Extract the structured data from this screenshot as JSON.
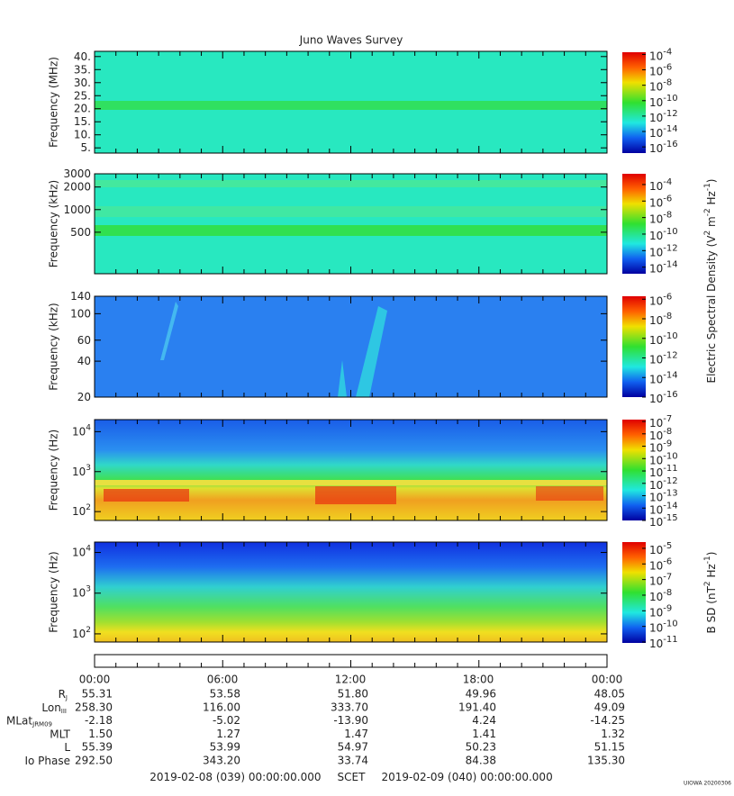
{
  "title": "Juno Waves Survey",
  "tick_base": "10",
  "panels": [
    {
      "ylabel": "Frequency (MHz)",
      "log": false,
      "ylim": [
        3,
        42
      ],
      "yticks": [
        {
          "value": 40,
          "label": "40."
        },
        {
          "value": 35,
          "label": "35."
        },
        {
          "value": 30,
          "label": "30."
        },
        {
          "value": 25,
          "label": "25."
        },
        {
          "value": 20,
          "label": "20."
        },
        {
          "value": 15,
          "label": "15."
        },
        {
          "value": 10,
          "label": "10."
        },
        {
          "value": 5,
          "label": "5."
        }
      ],
      "cbar_lim": [
        -16.8,
        -3.6
      ],
      "cbar_ticks": [
        -4,
        -6,
        -8,
        -10,
        -12,
        -14,
        -16
      ]
    },
    {
      "ylabel": "Frequency (kHz)",
      "log": true,
      "ylim": [
        140,
        3000
      ],
      "yticks": [
        3000,
        2000,
        1000,
        500
      ],
      "cbar_lim": [
        -14.8,
        -2.7
      ],
      "cbar_ticks": [
        -4,
        -6,
        -8,
        -10,
        -12,
        -14
      ]
    },
    {
      "ylabel": "Frequency (kHz)",
      "log": true,
      "ylim": [
        20,
        140
      ],
      "yticks": [
        140,
        100,
        60,
        40,
        20
      ],
      "cbar_lim": [
        -16,
        -5.7
      ],
      "cbar_ticks": [
        -6,
        -8,
        -10,
        -12,
        -14,
        -16
      ]
    },
    {
      "ylabel": "Frequency (Hz)",
      "log": true,
      "ylim": [
        60,
        20000
      ],
      "yticks": [
        {
          "value": 10000,
          "label": "10",
          "sup": "4"
        },
        {
          "value": 1000,
          "label": "10",
          "sup": "3"
        },
        {
          "value": 100,
          "label": "10",
          "sup": "2"
        }
      ],
      "cbar_lim": [
        -15,
        -6.85
      ],
      "cbar_ticks": [
        -7,
        -8,
        -9,
        -10,
        -11,
        -12,
        -13,
        -14,
        -15
      ]
    },
    {
      "ylabel": "Frequency (Hz)",
      "log": true,
      "ylim": [
        63,
        18000
      ],
      "yticks": [
        {
          "value": 10000,
          "label": "10",
          "sup": "4"
        },
        {
          "value": 1000,
          "label": "10",
          "sup": "3"
        },
        {
          "value": 100,
          "label": "10",
          "sup": "2"
        }
      ],
      "cbar_lim": [
        -11,
        -4.6
      ],
      "cbar_ticks": [
        -5,
        -6,
        -7,
        -8,
        -9,
        -10,
        -11
      ]
    }
  ],
  "cbar_labels": [
    [
      "Electric Spectral Density (V",
      "2",
      " m",
      "-2",
      " Hz",
      "-1",
      ")"
    ],
    [
      "B SD (nT",
      "2",
      " Hz",
      "-1",
      ")"
    ]
  ],
  "ephemeris": {
    "times": [
      "00:00",
      "06:00",
      "12:00",
      "18:00",
      "00:00"
    ],
    "rows": [
      {
        "label": "R",
        "sub": "J",
        "values": [
          "55.31",
          "53.58",
          "51.80",
          "49.96",
          "48.05"
        ]
      },
      {
        "label": "Lon",
        "sub": "III",
        "values": [
          "258.30",
          "116.00",
          "333.70",
          "191.40",
          "49.09"
        ]
      },
      {
        "label": "MLat",
        "sub": "JRM09",
        "values": [
          "-2.18",
          "-5.02",
          "-13.90",
          "4.24",
          "-14.25"
        ]
      },
      {
        "label": "MLT",
        "values": [
          "1.50",
          "1.27",
          "1.47",
          "1.41",
          "1.32"
        ]
      },
      {
        "label": "L",
        "values": [
          "55.39",
          "53.99",
          "54.97",
          "50.23",
          "51.15"
        ]
      },
      {
        "label": "Io Phase",
        "values": [
          "292.50",
          "343.20",
          "33.74",
          "84.38",
          "135.30"
        ]
      }
    ]
  },
  "footer": {
    "start": "2019-02-08 (039) 00:00:00.000",
    "scet": "SCET",
    "end": "2019-02-09 (040) 00:00:00.000"
  },
  "stamp": "UIOWA 20200306"
}
